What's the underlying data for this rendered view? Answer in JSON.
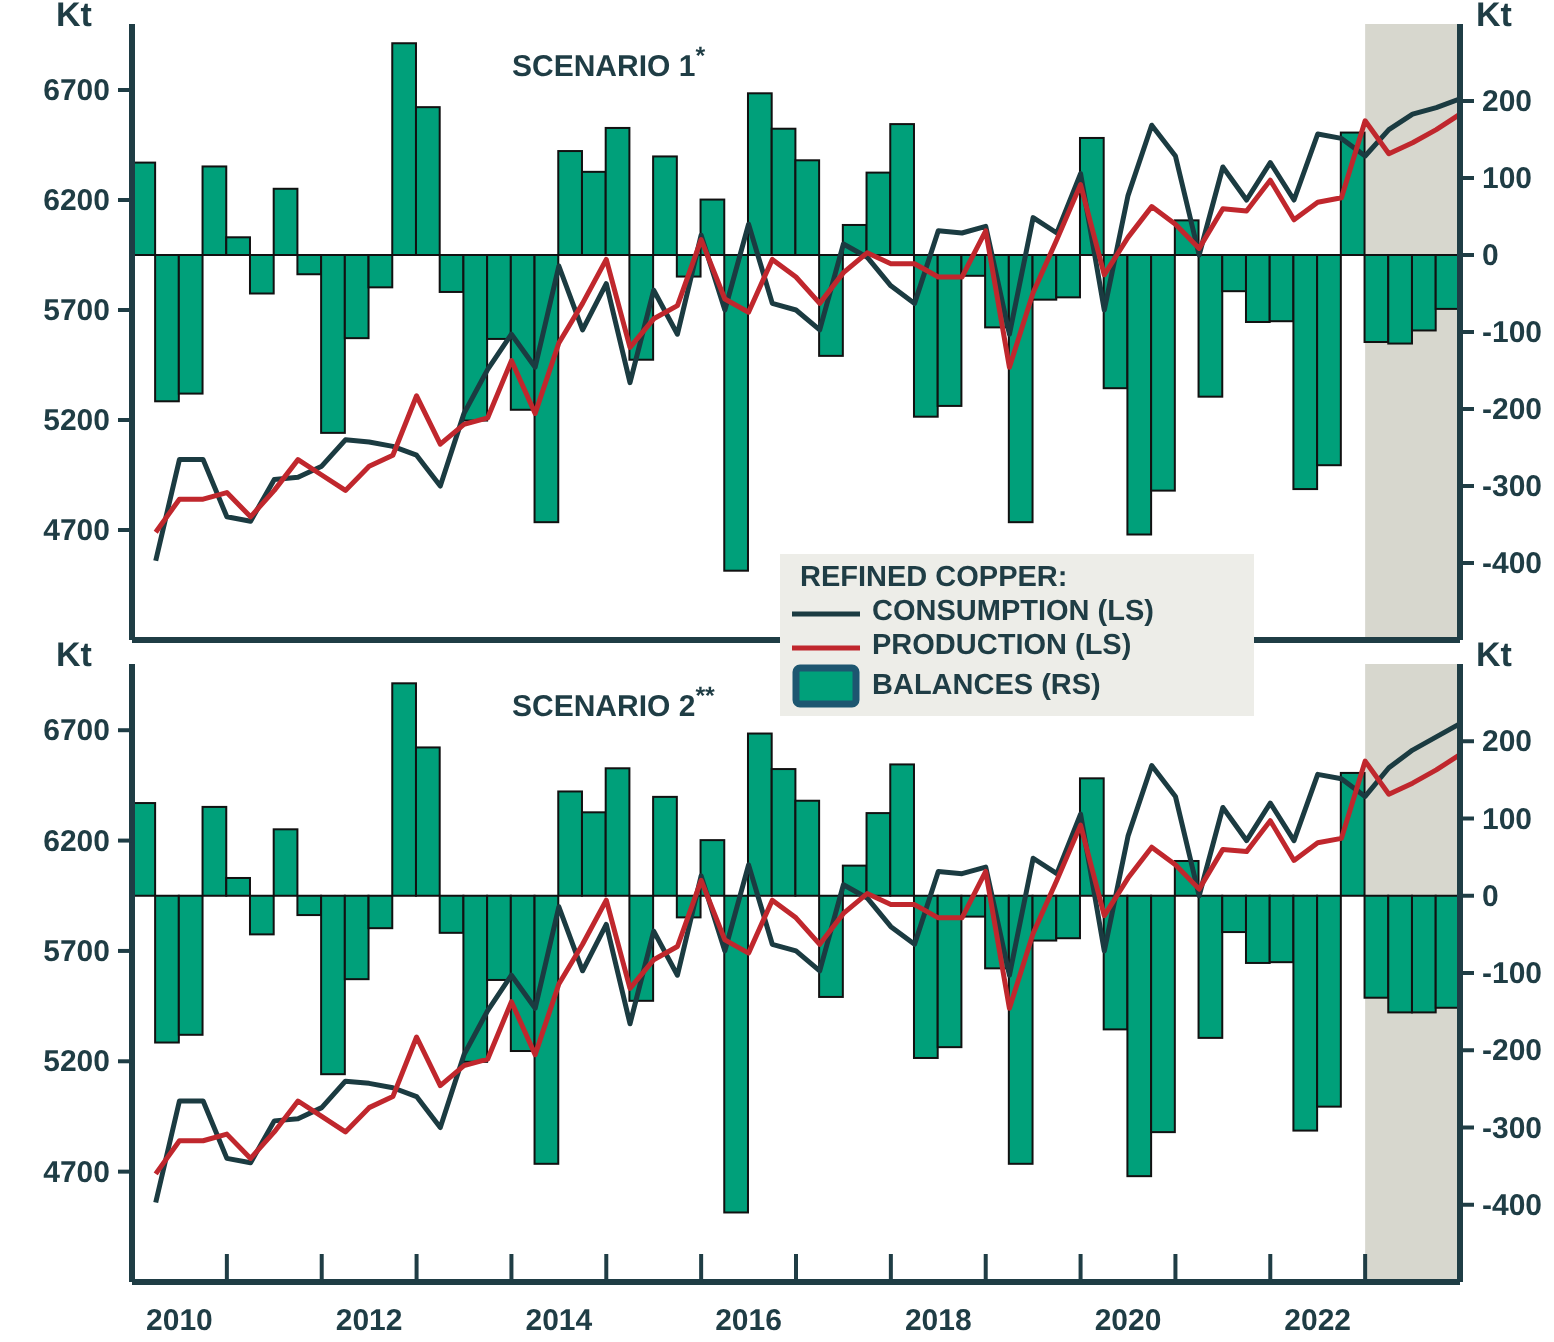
{
  "chart_data": [
    {
      "type": "bar",
      "title": "SCENARIO 1$^{*}$",
      "ylabel": "Kt",
      "y2label": "Kt",
      "legend_title": "REFINED COPPER:",
      "legend": "bottom right",
      "tick_labels": "y",
      "xlim": [
        2010,
        2024
      ],
      "ylim": [
        4200,
        7000
      ],
      "yticks": [
        4700,
        5200,
        5700,
        6200,
        6700
      ],
      "y2lim": [
        -500,
        300
      ],
      "y2ticks": [
        -400,
        -300,
        -200,
        -100,
        0,
        100,
        200
      ],
      "bands": [
        {
          "axis": "x",
          "from": 2023,
          "to": 2024,
          "color": "#d7d7ce"
        }
      ],
      "series": [
        {
          "name": "CONSUMPTION (LS)",
          "type": "line",
          "color": "#1b3b41",
          "x": [
            2010.25,
            2010.5,
            2010.75,
            2011,
            2011.25,
            2011.5,
            2011.75,
            2012,
            2012.25,
            2012.5,
            2012.75,
            2013,
            2013.25,
            2013.5,
            2013.75,
            2014,
            2014.25,
            2014.5,
            2014.75,
            2015,
            2015.25,
            2015.5,
            2015.75,
            2016,
            2016.25,
            2016.5,
            2016.75,
            2017,
            2017.25,
            2017.5,
            2017.75,
            2018,
            2018.25,
            2018.5,
            2018.75,
            2019,
            2019.25,
            2019.5,
            2019.75,
            2020,
            2020.25,
            2020.5,
            2020.75,
            2021,
            2021.25,
            2021.5,
            2021.75,
            2022,
            2022.25,
            2022.5,
            2022.75,
            2023,
            2023.25,
            2023.5,
            2023.75,
            2024
          ],
          "values": [
            4560,
            5020,
            5020,
            4760,
            4740,
            4930,
            4940,
            4990,
            5110,
            5100,
            5080,
            5040,
            4900,
            5230,
            5430,
            5590,
            5440,
            5900,
            5610,
            5820,
            5370,
            5790,
            5590,
            6040,
            5700,
            6090,
            5730,
            5700,
            5610,
            6000,
            5940,
            5810,
            5730,
            6060,
            6050,
            6080,
            5590,
            6120,
            6050,
            6320,
            5700,
            6220,
            6540,
            6400,
            5950,
            6350,
            6200,
            6370,
            6200,
            6500,
            6480,
            6400,
            6520,
            6590,
            6620,
            6660
          ]
        },
        {
          "name": "PRODUCTION (LS)",
          "type": "line",
          "color": "#c0272d",
          "x": [
            2010.25,
            2010.5,
            2010.75,
            2011,
            2011.25,
            2011.5,
            2011.75,
            2012,
            2012.25,
            2012.5,
            2012.75,
            2013,
            2013.25,
            2013.5,
            2013.75,
            2014,
            2014.25,
            2014.5,
            2014.75,
            2015,
            2015.25,
            2015.5,
            2015.75,
            2016,
            2016.25,
            2016.5,
            2016.75,
            2017,
            2017.25,
            2017.5,
            2017.75,
            2018,
            2018.25,
            2018.5,
            2018.75,
            2019,
            2019.25,
            2019.5,
            2019.75,
            2020,
            2020.25,
            2020.5,
            2020.75,
            2021,
            2021.25,
            2021.5,
            2021.75,
            2022,
            2022.25,
            2022.5,
            2022.75,
            2023,
            2023.25,
            2023.5,
            2023.75,
            2024
          ],
          "values": [
            4690,
            4840,
            4840,
            4870,
            4760,
            4880,
            5020,
            4950,
            4880,
            4990,
            5040,
            5310,
            5090,
            5180,
            5210,
            5470,
            5230,
            5550,
            5730,
            5930,
            5530,
            5660,
            5720,
            6020,
            5750,
            5690,
            5930,
            5850,
            5730,
            5870,
            5960,
            5910,
            5910,
            5850,
            5850,
            6060,
            5440,
            5780,
            6020,
            6270,
            5860,
            6030,
            6170,
            6090,
            5980,
            6160,
            6150,
            6290,
            6110,
            6190,
            6210,
            6560,
            6410,
            6460,
            6520,
            6590
          ]
        },
        {
          "name": "BALANCES (RS)",
          "axis": "y2",
          "color": "#00a07a",
          "x": [
            2010.125,
            2010.375,
            2010.625,
            2010.875,
            2011.125,
            2011.375,
            2011.625,
            2011.875,
            2012.125,
            2012.375,
            2012.625,
            2012.875,
            2013.125,
            2013.375,
            2013.625,
            2013.875,
            2014.125,
            2014.375,
            2014.625,
            2014.875,
            2015.125,
            2015.375,
            2015.625,
            2015.875,
            2016.125,
            2016.375,
            2016.625,
            2016.875,
            2017.125,
            2017.375,
            2017.625,
            2017.875,
            2018.125,
            2018.375,
            2018.625,
            2018.875,
            2019.125,
            2019.375,
            2019.625,
            2019.875,
            2020.125,
            2020.375,
            2020.625,
            2020.875,
            2021.125,
            2021.375,
            2021.625,
            2021.875,
            2022.125,
            2022.375,
            2022.625,
            2022.875,
            2023.125,
            2023.375,
            2023.625,
            2023.875
          ],
          "values": [
            120,
            -190,
            -180,
            115,
            23,
            -50,
            86,
            -25,
            -231,
            -108,
            -42,
            275,
            192,
            -48,
            -215,
            -109,
            -201,
            -347,
            135,
            108,
            165,
            -136,
            128,
            -28,
            72,
            -410,
            210,
            164,
            123,
            -131,
            39,
            107,
            170,
            -210,
            -196,
            -27,
            -94,
            -347,
            -58,
            -55,
            152,
            -173,
            -363,
            -306,
            45,
            -184,
            -47,
            -87,
            -86,
            -304,
            -273,
            159,
            -113,
            -115,
            -98,
            -70
          ]
        }
      ]
    },
    {
      "type": "bar",
      "title": "SCENARIO 2$^{**}$",
      "ylabel": "Kt",
      "y2label": "Kt",
      "xlim": [
        2010,
        2024
      ],
      "xticks": [
        {
          "value": 2010,
          "label": null
        },
        {
          "value": 2010.5,
          "label": "2010"
        },
        {
          "value": 2011,
          "label": null
        },
        {
          "value": 2012,
          "label": null
        },
        {
          "value": 2012.5,
          "label": "2012"
        },
        {
          "value": 2013,
          "label": null
        },
        {
          "value": 2014,
          "label": null
        },
        {
          "value": 2014.5,
          "label": "2014"
        },
        {
          "value": 2015,
          "label": null
        },
        {
          "value": 2016,
          "label": null
        },
        {
          "value": 2016.5,
          "label": "2016"
        },
        {
          "value": 2017,
          "label": null
        },
        {
          "value": 2018,
          "label": null
        },
        {
          "value": 2018.5,
          "label": "2018"
        },
        {
          "value": 2019,
          "label": null
        },
        {
          "value": 2020,
          "label": null
        },
        {
          "value": 2020.5,
          "label": "2020"
        },
        {
          "value": 2021,
          "label": null
        },
        {
          "value": 2022,
          "label": null
        },
        {
          "value": 2022.5,
          "label": "2022"
        },
        {
          "value": 2023,
          "label": null
        },
        {
          "value": 2024,
          "label": null
        }
      ],
      "ylim": [
        4200,
        7000
      ],
      "yticks": [
        4700,
        5200,
        5700,
        6200,
        6700
      ],
      "y2lim": [
        -500,
        300
      ],
      "y2ticks": [
        -400,
        -300,
        -200,
        -100,
        0,
        100,
        200
      ],
      "bands": [
        {
          "axis": "x",
          "from": 2023,
          "to": 2024,
          "color": "#d7d7ce"
        }
      ],
      "series": [
        {
          "type": "line",
          "color": "#1b3b41",
          "x": [
            2010.25,
            2010.5,
            2010.75,
            2011,
            2011.25,
            2011.5,
            2011.75,
            2012,
            2012.25,
            2012.5,
            2012.75,
            2013,
            2013.25,
            2013.5,
            2013.75,
            2014,
            2014.25,
            2014.5,
            2014.75,
            2015,
            2015.25,
            2015.5,
            2015.75,
            2016,
            2016.25,
            2016.5,
            2016.75,
            2017,
            2017.25,
            2017.5,
            2017.75,
            2018,
            2018.25,
            2018.5,
            2018.75,
            2019,
            2019.25,
            2019.5,
            2019.75,
            2020,
            2020.25,
            2020.5,
            2020.75,
            2021,
            2021.25,
            2021.5,
            2021.75,
            2022,
            2022.25,
            2022.5,
            2022.75,
            2023,
            2023.25,
            2023.5,
            2023.75,
            2024
          ],
          "values": [
            4560,
            5020,
            5020,
            4760,
            4740,
            4930,
            4940,
            4990,
            5110,
            5100,
            5080,
            5040,
            4900,
            5230,
            5430,
            5590,
            5440,
            5900,
            5610,
            5820,
            5370,
            5790,
            5590,
            6040,
            5700,
            6090,
            5730,
            5700,
            5610,
            6000,
            5940,
            5810,
            5730,
            6060,
            6050,
            6080,
            5590,
            6120,
            6050,
            6320,
            5700,
            6220,
            6540,
            6400,
            5950,
            6350,
            6200,
            6370,
            6200,
            6500,
            6480,
            6400,
            6530,
            6610,
            6670,
            6730
          ]
        },
        {
          "type": "line",
          "color": "#c0272d",
          "x": [
            2010.25,
            2010.5,
            2010.75,
            2011,
            2011.25,
            2011.5,
            2011.75,
            2012,
            2012.25,
            2012.5,
            2012.75,
            2013,
            2013.25,
            2013.5,
            2013.75,
            2014,
            2014.25,
            2014.5,
            2014.75,
            2015,
            2015.25,
            2015.5,
            2015.75,
            2016,
            2016.25,
            2016.5,
            2016.75,
            2017,
            2017.25,
            2017.5,
            2017.75,
            2018,
            2018.25,
            2018.5,
            2018.75,
            2019,
            2019.25,
            2019.5,
            2019.75,
            2020,
            2020.25,
            2020.5,
            2020.75,
            2021,
            2021.25,
            2021.5,
            2021.75,
            2022,
            2022.25,
            2022.5,
            2022.75,
            2023,
            2023.25,
            2023.5,
            2023.75,
            2024
          ],
          "values": [
            4690,
            4840,
            4840,
            4870,
            4760,
            4880,
            5020,
            4950,
            4880,
            4990,
            5040,
            5310,
            5090,
            5180,
            5210,
            5470,
            5230,
            5550,
            5730,
            5930,
            5530,
            5660,
            5720,
            6020,
            5750,
            5690,
            5930,
            5850,
            5730,
            5870,
            5960,
            5910,
            5910,
            5850,
            5850,
            6060,
            5440,
            5780,
            6020,
            6270,
            5860,
            6030,
            6170,
            6090,
            5980,
            6160,
            6150,
            6290,
            6110,
            6190,
            6210,
            6560,
            6410,
            6460,
            6520,
            6590
          ]
        },
        {
          "axis": "y2",
          "color": "#00a07a",
          "x": [
            2010.125,
            2010.375,
            2010.625,
            2010.875,
            2011.125,
            2011.375,
            2011.625,
            2011.875,
            2012.125,
            2012.375,
            2012.625,
            2012.875,
            2013.125,
            2013.375,
            2013.625,
            2013.875,
            2014.125,
            2014.375,
            2014.625,
            2014.875,
            2015.125,
            2015.375,
            2015.625,
            2015.875,
            2016.125,
            2016.375,
            2016.625,
            2016.875,
            2017.125,
            2017.375,
            2017.625,
            2017.875,
            2018.125,
            2018.375,
            2018.625,
            2018.875,
            2019.125,
            2019.375,
            2019.625,
            2019.875,
            2020.125,
            2020.375,
            2020.625,
            2020.875,
            2021.125,
            2021.375,
            2021.625,
            2021.875,
            2022.125,
            2022.375,
            2022.625,
            2022.875,
            2023.125,
            2023.375,
            2023.625,
            2023.875
          ],
          "values": [
            120,
            -190,
            -180,
            115,
            23,
            -50,
            86,
            -25,
            -231,
            -108,
            -42,
            275,
            192,
            -48,
            -215,
            -109,
            -201,
            -347,
            135,
            108,
            165,
            -136,
            128,
            -28,
            72,
            -410,
            210,
            164,
            123,
            -131,
            39,
            107,
            170,
            -210,
            -196,
            -27,
            -94,
            -347,
            -58,
            -55,
            152,
            -173,
            -363,
            -306,
            45,
            -184,
            -47,
            -87,
            -86,
            -304,
            -273,
            159,
            -132,
            -151,
            -151,
            -145
          ]
        }
      ]
    }
  ]
}
